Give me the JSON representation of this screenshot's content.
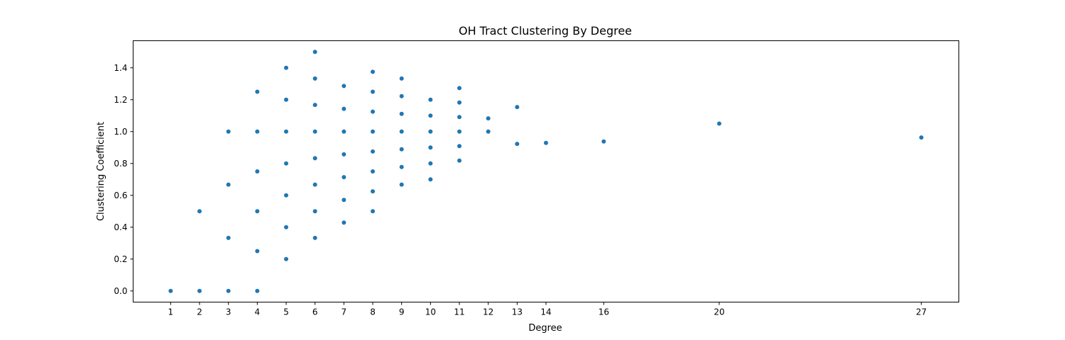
{
  "chart_data": {
    "type": "scatter",
    "title": "OH Tract Clustering By Degree",
    "xlabel": "Degree",
    "ylabel": "Clustering Coefficient",
    "xlim": [
      -0.3,
      28.3
    ],
    "ylim": [
      -0.07,
      1.57
    ],
    "xticks": [
      1,
      2,
      3,
      4,
      5,
      6,
      7,
      8,
      9,
      10,
      11,
      12,
      13,
      14,
      16,
      20,
      27
    ],
    "yticks": [
      0.0,
      0.2,
      0.4,
      0.6,
      0.8,
      1.0,
      1.2,
      1.4
    ],
    "ytick_labels": [
      "0.0",
      "0.2",
      "0.4",
      "0.6",
      "0.8",
      "1.0",
      "1.2",
      "1.4"
    ],
    "grid": false,
    "marker_color": "#1f77b4",
    "points": [
      [
        1,
        0.0
      ],
      [
        2,
        0.0
      ],
      [
        2,
        0.5
      ],
      [
        3,
        0.0
      ],
      [
        3,
        0.333
      ],
      [
        3,
        0.667
      ],
      [
        3,
        1.0
      ],
      [
        4,
        0.0
      ],
      [
        4,
        0.25
      ],
      [
        4,
        0.5
      ],
      [
        4,
        0.75
      ],
      [
        4,
        1.0
      ],
      [
        4,
        1.25
      ],
      [
        5,
        0.2
      ],
      [
        5,
        0.4
      ],
      [
        5,
        0.6
      ],
      [
        5,
        0.8
      ],
      [
        5,
        1.0
      ],
      [
        5,
        1.2
      ],
      [
        5,
        1.4
      ],
      [
        6,
        0.333
      ],
      [
        6,
        0.5
      ],
      [
        6,
        0.667
      ],
      [
        6,
        0.833
      ],
      [
        6,
        1.0
      ],
      [
        6,
        1.167
      ],
      [
        6,
        1.333
      ],
      [
        6,
        1.5
      ],
      [
        7,
        0.429
      ],
      [
        7,
        0.571
      ],
      [
        7,
        0.714
      ],
      [
        7,
        0.857
      ],
      [
        7,
        1.0
      ],
      [
        7,
        1.143
      ],
      [
        7,
        1.286
      ],
      [
        8,
        0.5
      ],
      [
        8,
        0.625
      ],
      [
        8,
        0.75
      ],
      [
        8,
        0.875
      ],
      [
        8,
        1.0
      ],
      [
        8,
        1.125
      ],
      [
        8,
        1.25
      ],
      [
        8,
        1.375
      ],
      [
        9,
        0.667
      ],
      [
        9,
        0.778
      ],
      [
        9,
        0.889
      ],
      [
        9,
        1.0
      ],
      [
        9,
        1.111
      ],
      [
        9,
        1.222
      ],
      [
        9,
        1.333
      ],
      [
        10,
        0.7
      ],
      [
        10,
        0.8
      ],
      [
        10,
        0.9
      ],
      [
        10,
        1.0
      ],
      [
        10,
        1.1
      ],
      [
        10,
        1.2
      ],
      [
        11,
        0.818
      ],
      [
        11,
        0.909
      ],
      [
        11,
        1.0
      ],
      [
        11,
        1.091
      ],
      [
        11,
        1.182
      ],
      [
        11,
        1.273
      ],
      [
        12,
        1.0
      ],
      [
        12,
        1.083
      ],
      [
        13,
        0.923
      ],
      [
        13,
        1.154
      ],
      [
        14,
        0.929
      ],
      [
        16,
        0.938
      ],
      [
        20,
        1.05
      ],
      [
        27,
        0.963
      ]
    ]
  }
}
